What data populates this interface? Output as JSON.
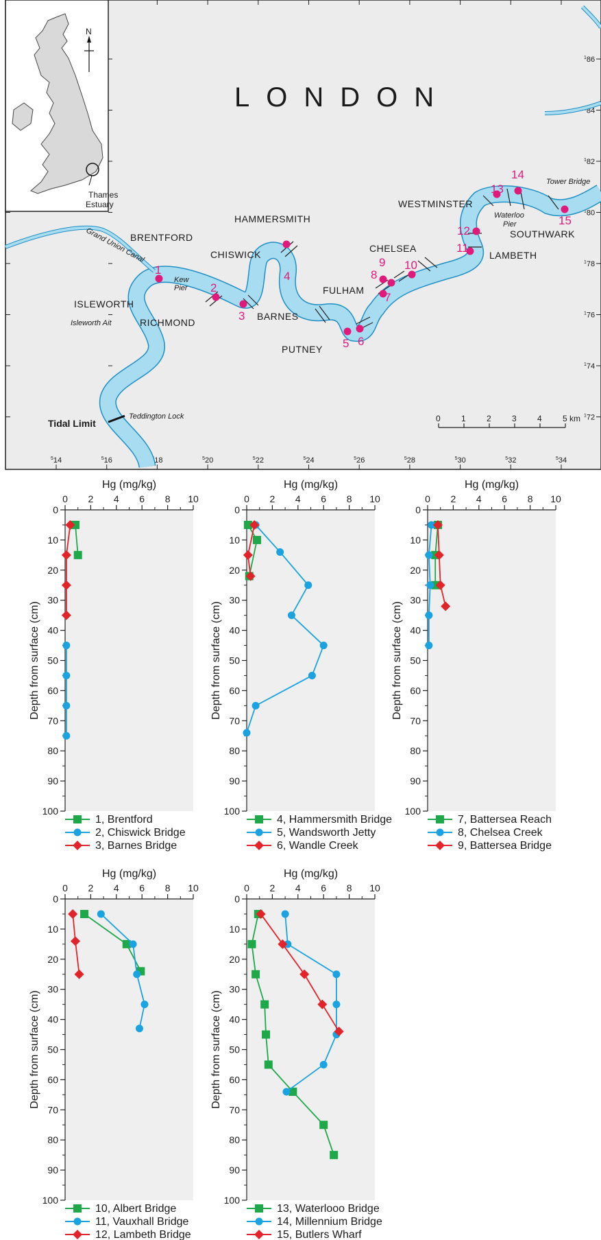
{
  "map": {
    "title": "LONDON",
    "north_label": "N",
    "inset_label_1": "Thames",
    "inset_label_2": "Estuary",
    "canal_label": "Grand Union Canal",
    "places": [
      {
        "name": "BRENTFORD"
      },
      {
        "name": "HAMMERSMITH"
      },
      {
        "name": "CHISWICK"
      },
      {
        "name": "ISLEWORTH"
      },
      {
        "name": "RICHMOND"
      },
      {
        "name": "BARNES"
      },
      {
        "name": "FULHAM"
      },
      {
        "name": "CHELSEA"
      },
      {
        "name": "PUTNEY"
      },
      {
        "name": "WESTMINSTER"
      },
      {
        "name": "SOUTHWARK"
      },
      {
        "name": "LAMBETH"
      }
    ],
    "small_labels": [
      {
        "name": "Kew"
      },
      {
        "name": "Pier"
      },
      {
        "name": "Isleworth Ait"
      },
      {
        "name": "Waterloo"
      },
      {
        "name": "Pier"
      },
      {
        "name": "Tower Bridge"
      },
      {
        "name": "Teddington Lock"
      }
    ],
    "tidal_limit": "Tidal Limit",
    "sites": [
      "1",
      "2",
      "3",
      "4",
      "5",
      "6",
      "7",
      "8",
      "9",
      "10",
      "11",
      "12",
      "13",
      "14",
      "15"
    ],
    "scalebar": {
      "ticks": [
        "0",
        "1",
        "2",
        "3",
        "4"
      ],
      "end_label": "5 km"
    },
    "grid_x": [
      {
        "sup": "5",
        "val": "14"
      },
      {
        "sup": "5",
        "val": "16"
      },
      {
        "sup": "5",
        "val": "18"
      },
      {
        "sup": "5",
        "val": "20"
      },
      {
        "sup": "5",
        "val": "22"
      },
      {
        "sup": "5",
        "val": "24"
      },
      {
        "sup": "5",
        "val": "26"
      },
      {
        "sup": "5",
        "val": "28"
      },
      {
        "sup": "5",
        "val": "30"
      },
      {
        "sup": "5",
        "val": "32"
      },
      {
        "sup": "5",
        "val": "34"
      }
    ],
    "grid_y": [
      {
        "sup": "1",
        "val": "86"
      },
      {
        "sup": "1",
        "val": "84"
      },
      {
        "sup": "1",
        "val": "82"
      },
      {
        "sup": "1",
        "val": "80"
      },
      {
        "sup": "1",
        "val": "78"
      },
      {
        "sup": "1",
        "val": "76"
      },
      {
        "sup": "1",
        "val": "74"
      },
      {
        "sup": "1",
        "val": "72"
      }
    ],
    "colors": {
      "river": "#a8dcf0",
      "river_edge": "#1f8fc4",
      "site": "#e0197a",
      "land": "#ececec"
    }
  },
  "chart_data": [
    {
      "type": "line",
      "xlabel": "Hg (mg/kg)",
      "ylabel": "Depth from surface (cm)",
      "xlim": [
        0,
        10
      ],
      "ylim": [
        0,
        100
      ],
      "x_ticks": [
        "0",
        "2",
        "4",
        "6",
        "8",
        "10"
      ],
      "y_ticks": [
        "0",
        "10",
        "20",
        "30",
        "40",
        "50",
        "60",
        "70",
        "80",
        "90",
        "100"
      ],
      "series": [
        {
          "name": "1,   Brentford",
          "marker": "square",
          "color": "#1ea84a",
          "points": [
            [
              0.8,
              5
            ],
            [
              1.0,
              15
            ]
          ]
        },
        {
          "name": "2,   Chiswick Bridge",
          "marker": "circle",
          "color": "#1aa3e0",
          "points": [
            [
              0.1,
              45
            ],
            [
              0.1,
              55
            ],
            [
              0.1,
              65
            ],
            [
              0.1,
              75
            ]
          ]
        },
        {
          "name": "3,   Barnes Bridge",
          "marker": "diamond",
          "color": "#e2232a",
          "points": [
            [
              0.4,
              5
            ],
            [
              0.1,
              15
            ],
            [
              0.1,
              25
            ],
            [
              0.1,
              35
            ]
          ]
        }
      ]
    },
    {
      "type": "line",
      "xlabel": "Hg (mg/kg)",
      "ylabel": "Depth from surface (cm)",
      "xlim": [
        0,
        10
      ],
      "ylim": [
        0,
        100
      ],
      "x_ticks": [
        "0",
        "2",
        "4",
        "6",
        "8",
        "10"
      ],
      "y_ticks": [
        "0",
        "10",
        "20",
        "30",
        "40",
        "50",
        "60",
        "70",
        "80",
        "90",
        "100"
      ],
      "series": [
        {
          "name": "4,   Hammersmith Bridge",
          "marker": "square",
          "color": "#1ea84a",
          "points": [
            [
              0.1,
              5
            ],
            [
              0.8,
              10
            ],
            [
              0.2,
              22
            ]
          ]
        },
        {
          "name": "5,   Wandsworth Jetty",
          "marker": "circle",
          "color": "#1aa3e0",
          "points": [
            [
              0.7,
              5
            ],
            [
              2.6,
              14
            ],
            [
              4.8,
              25
            ],
            [
              3.5,
              35
            ],
            [
              6.0,
              45
            ],
            [
              5.1,
              55
            ],
            [
              0.7,
              65
            ],
            [
              0.0,
              74
            ]
          ]
        },
        {
          "name": "6,   Wandle Creek",
          "marker": "diamond",
          "color": "#e2232a",
          "points": [
            [
              0.6,
              5
            ],
            [
              0.1,
              15
            ],
            [
              0.3,
              22
            ]
          ]
        }
      ]
    },
    {
      "type": "line",
      "xlabel": "Hg (mg/kg)",
      "ylabel": "Depth from surface (cm)",
      "xlim": [
        0,
        10
      ],
      "ylim": [
        0,
        100
      ],
      "x_ticks": [
        "0",
        "2",
        "4",
        "6",
        "8",
        "10"
      ],
      "y_ticks": [
        "0",
        "10",
        "20",
        "30",
        "40",
        "50",
        "60",
        "70",
        "80",
        "90",
        "100"
      ],
      "series": [
        {
          "name": "7,   Battersea Reach",
          "marker": "square",
          "color": "#1ea84a",
          "points": [
            [
              0.8,
              5
            ],
            [
              0.6,
              15
            ],
            [
              0.6,
              25
            ]
          ]
        },
        {
          "name": "8,   Chelsea Creek",
          "marker": "circle",
          "color": "#1aa3e0",
          "points": [
            [
              0.3,
              5
            ],
            [
              0.1,
              15
            ],
            [
              0.2,
              25
            ],
            [
              0.1,
              35
            ],
            [
              0.1,
              45
            ]
          ]
        },
        {
          "name": "9,   Battersea Bridge",
          "marker": "diamond",
          "color": "#e2232a",
          "points": [
            [
              0.8,
              5
            ],
            [
              0.9,
              15
            ],
            [
              1.0,
              25
            ],
            [
              1.4,
              32
            ]
          ]
        }
      ]
    },
    {
      "type": "line",
      "xlabel": "Hg (mg/kg)",
      "ylabel": "Depth from surface (cm)",
      "xlim": [
        0,
        10
      ],
      "ylim": [
        0,
        100
      ],
      "x_ticks": [
        "0",
        "2",
        "4",
        "6",
        "8",
        "10"
      ],
      "y_ticks": [
        "0",
        "10",
        "20",
        "30",
        "40",
        "50",
        "60",
        "70",
        "80",
        "90",
        "100"
      ],
      "series": [
        {
          "name": "10, Albert Bridge",
          "marker": "square",
          "color": "#1ea84a",
          "points": [
            [
              1.5,
              5
            ],
            [
              4.8,
              15
            ],
            [
              5.9,
              24
            ]
          ]
        },
        {
          "name": "11, Vauxhall Bridge",
          "marker": "circle",
          "color": "#1aa3e0",
          "points": [
            [
              2.8,
              5
            ],
            [
              5.3,
              15
            ],
            [
              5.6,
              25
            ],
            [
              6.2,
              35
            ],
            [
              5.8,
              43
            ]
          ]
        },
        {
          "name": "12, Lambeth Bridge",
          "marker": "diamond",
          "color": "#e2232a",
          "points": [
            [
              0.6,
              5
            ],
            [
              0.8,
              14
            ],
            [
              1.1,
              25
            ]
          ]
        }
      ]
    },
    {
      "type": "line",
      "xlabel": "Hg (mg/kg)",
      "ylabel": "Depth from surface (cm)",
      "xlim": [
        0,
        10
      ],
      "ylim": [
        0,
        100
      ],
      "x_ticks": [
        "0",
        "2",
        "4",
        "6",
        "8",
        "10"
      ],
      "y_ticks": [
        "0",
        "10",
        "20",
        "30",
        "40",
        "50",
        "60",
        "70",
        "80",
        "90",
        "100"
      ],
      "series": [
        {
          "name": "13, Waterlooo Bridge",
          "marker": "square",
          "color": "#1ea84a",
          "points": [
            [
              0.9,
              5
            ],
            [
              0.4,
              15
            ],
            [
              0.7,
              25
            ],
            [
              1.4,
              35
            ],
            [
              1.5,
              45
            ],
            [
              1.7,
              55
            ],
            [
              3.6,
              64
            ],
            [
              6.0,
              75
            ],
            [
              6.8,
              85
            ]
          ]
        },
        {
          "name": "14, Millennium Bridge",
          "marker": "circle",
          "color": "#1aa3e0",
          "points": [
            [
              3.0,
              5
            ],
            [
              3.2,
              15
            ],
            [
              7.0,
              25
            ],
            [
              7.0,
              35
            ],
            [
              7.0,
              45
            ],
            [
              6.0,
              55
            ],
            [
              3.1,
              64
            ]
          ]
        },
        {
          "name": "15, Butlers Wharf",
          "marker": "diamond",
          "color": "#e2232a",
          "points": [
            [
              1.1,
              5
            ],
            [
              2.8,
              15
            ],
            [
              4.5,
              25
            ],
            [
              5.9,
              35
            ],
            [
              7.2,
              44
            ]
          ]
        }
      ]
    }
  ]
}
